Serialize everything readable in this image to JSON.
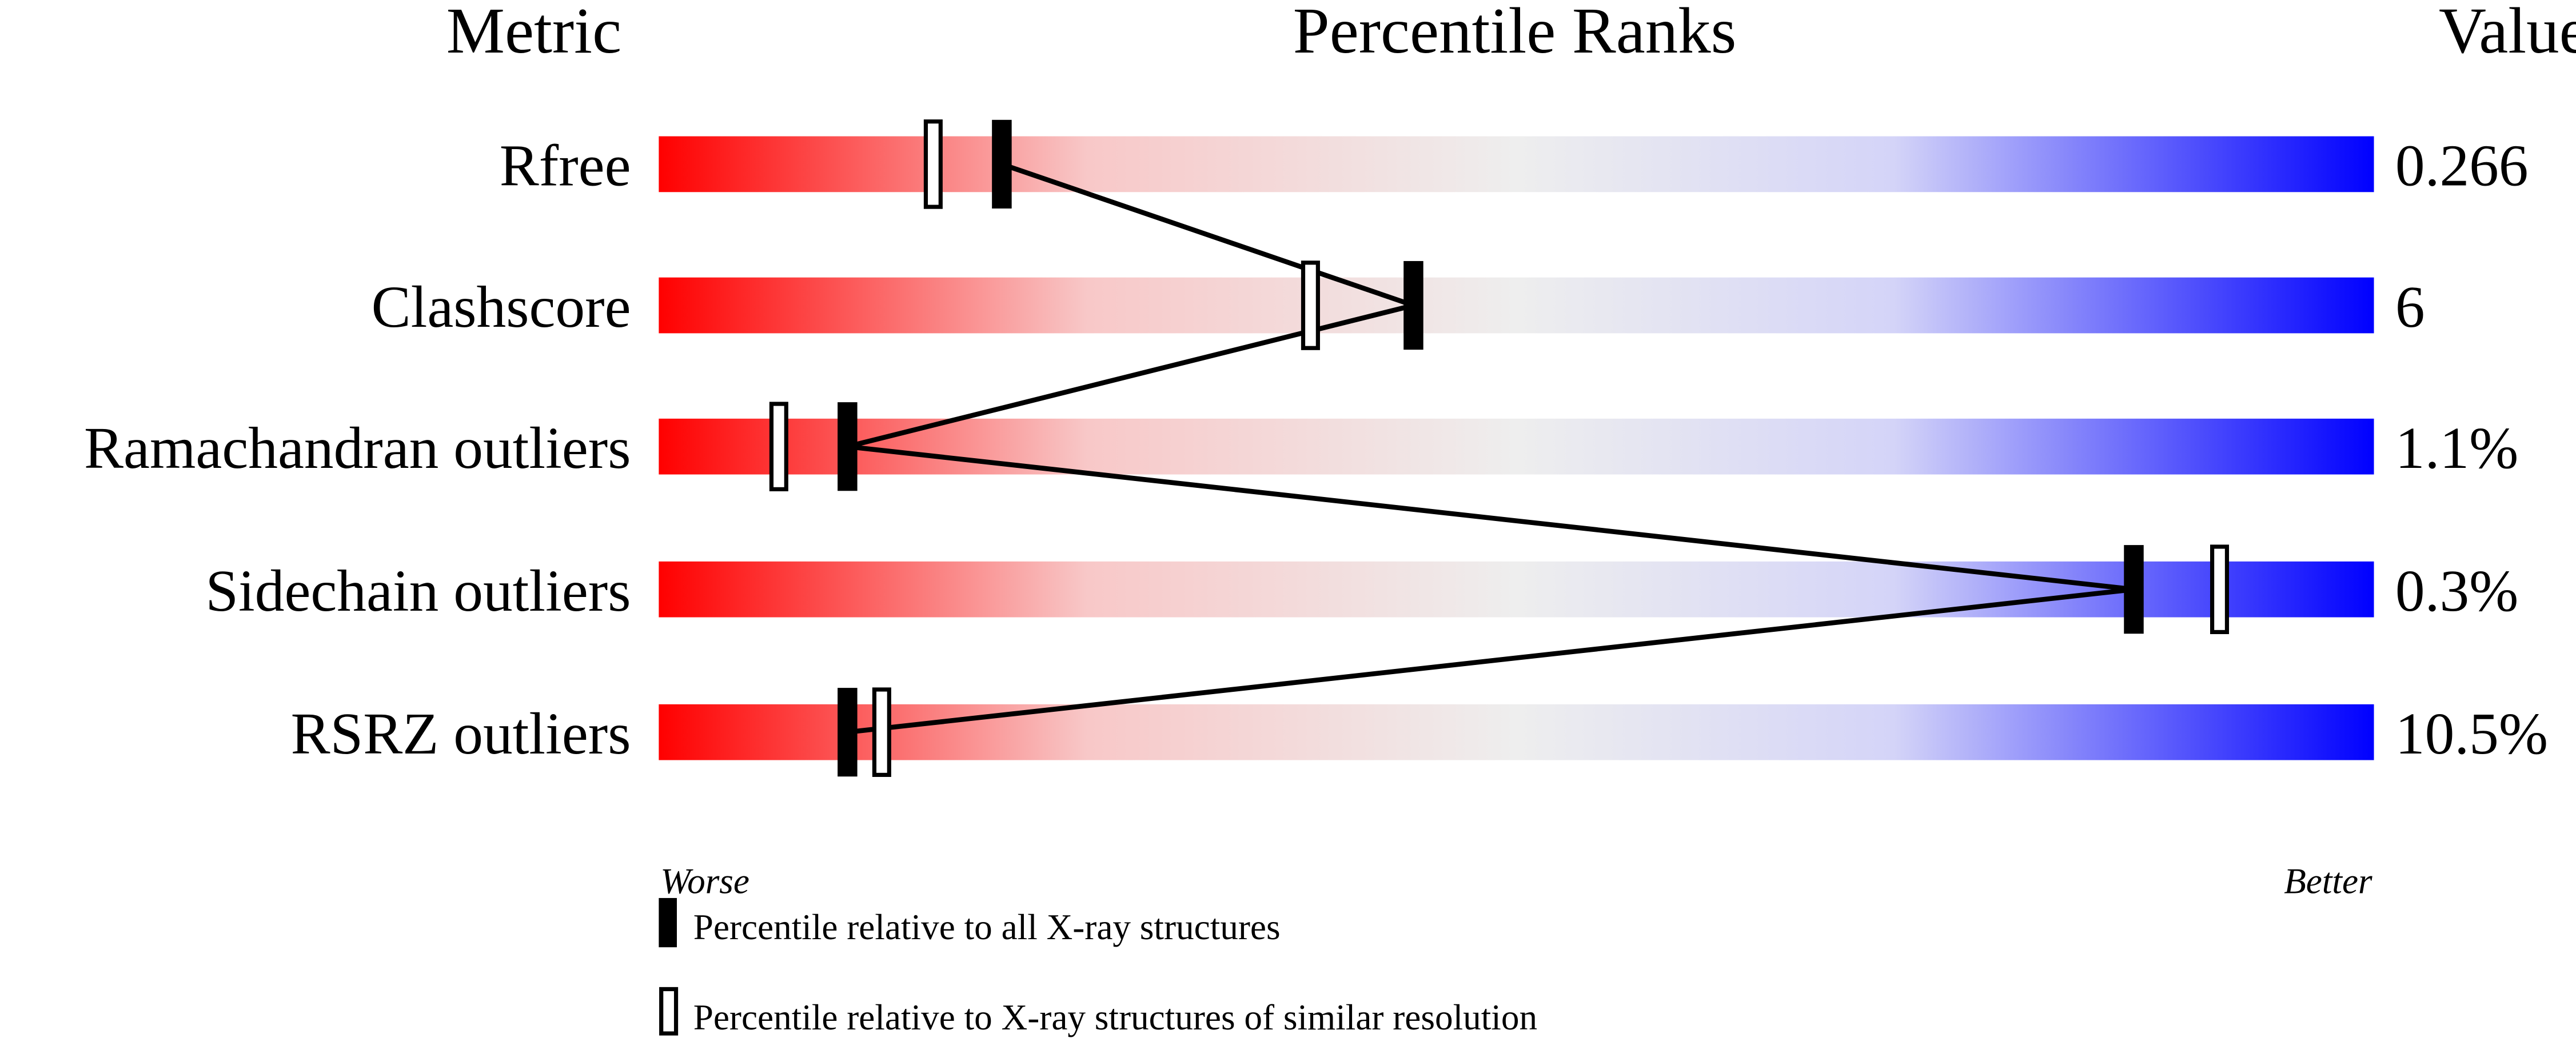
{
  "chart_data": {
    "type": "percentile-rank-slider",
    "headers": {
      "metric": "Metric",
      "ranks": "Percentile Ranks",
      "value": "Value"
    },
    "xlim": [
      0,
      100
    ],
    "axis": {
      "left": "Worse",
      "right": "Better"
    },
    "gradient_colors": [
      "#ff0000",
      "#f8c8c8",
      "#eeeeee",
      "#d4d4f8",
      "#0000ff"
    ],
    "metrics": [
      {
        "name": "Rfree",
        "value": "0.266",
        "percentile_all": 20,
        "percentile_similar": 16
      },
      {
        "name": "Clashscore",
        "value": "6",
        "percentile_all": 44,
        "percentile_similar": 38
      },
      {
        "name": "Ramachandran outliers",
        "value": "1.1%",
        "percentile_all": 11,
        "percentile_similar": 7
      },
      {
        "name": "Sidechain outliers",
        "value": "0.3%",
        "percentile_all": 86,
        "percentile_similar": 91
      },
      {
        "name": "RSRZ outliers",
        "value": "10.5%",
        "percentile_all": 11,
        "percentile_similar": 13
      }
    ],
    "legend": [
      {
        "marker": "filled",
        "label": "Percentile relative to all X-ray structures"
      },
      {
        "marker": "open",
        "label": "Percentile relative to X-ray structures of similar resolution"
      }
    ]
  }
}
